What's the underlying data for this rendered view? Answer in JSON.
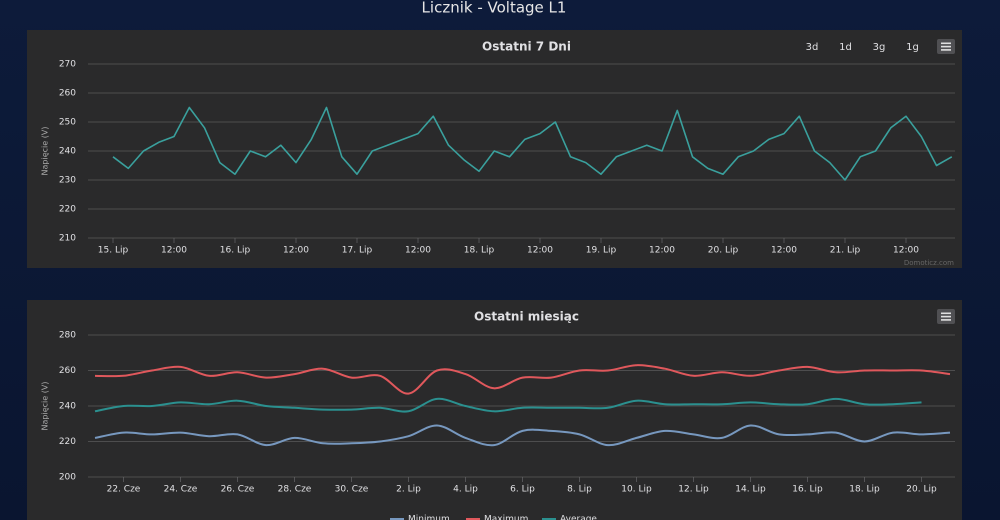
{
  "page_title": "Licznik - Voltage L1",
  "chart_data": [
    {
      "type": "line",
      "title": "Ostatni 7 Dni",
      "y_label": "Napięcie (V)",
      "buttons": [
        "3d",
        "1d",
        "3g",
        "1g"
      ],
      "credits": "Domoticz.com",
      "color": "#3aa09d",
      "grid": true,
      "smooth": false,
      "ylim": [
        210,
        270
      ],
      "yticks": [
        210,
        220,
        230,
        240,
        250,
        260,
        270
      ],
      "categories": [
        "15. Lip",
        null,
        null,
        null,
        "12:00",
        null,
        null,
        null,
        "16. Lip",
        null,
        null,
        null,
        "12:00",
        null,
        null,
        null,
        "17. Lip",
        null,
        null,
        null,
        "12:00",
        null,
        null,
        null,
        "18. Lip",
        null,
        null,
        null,
        "12:00",
        null,
        null,
        null,
        "19. Lip",
        null,
        null,
        null,
        "12:00",
        null,
        null,
        null,
        "20. Lip",
        null,
        null,
        null,
        "12:00",
        null,
        null,
        null,
        "21. Lip",
        null,
        null,
        null,
        "12:00",
        null,
        null,
        null
      ],
      "values": [
        238,
        234,
        240,
        243,
        245,
        255,
        248,
        236,
        232,
        240,
        238,
        242,
        236,
        244,
        255,
        238,
        232,
        240,
        242,
        244,
        246,
        252,
        242,
        237,
        233,
        240,
        238,
        244,
        246,
        250,
        238,
        236,
        232,
        238,
        240,
        242,
        240,
        254,
        238,
        234,
        232,
        238,
        240,
        244,
        246,
        252,
        240,
        236,
        230,
        238,
        240,
        248,
        252,
        245,
        235,
        238
      ]
    },
    {
      "type": "line",
      "title": "Ostatni miesiąc",
      "y_label": "Napięcie (V)",
      "grid": true,
      "smooth": true,
      "legend": "bottom",
      "ylim": [
        200,
        280
      ],
      "yticks": [
        200,
        220,
        240,
        260,
        280
      ],
      "categories": [
        null,
        "22. Cze",
        null,
        "24. Cze",
        null,
        "26. Cze",
        null,
        "28. Cze",
        null,
        "30. Cze",
        null,
        "2. Lip",
        null,
        "4. Lip",
        null,
        "6. Lip",
        null,
        "8. Lip",
        null,
        "10. Lip",
        null,
        "12. Lip",
        null,
        "14. Lip",
        null,
        "16. Lip",
        null,
        "18. Lip",
        null,
        "20. Lip",
        null
      ],
      "series": [
        {
          "name": "Minimum",
          "color": "#7798bf",
          "values": [
            222,
            225,
            224,
            225,
            223,
            224,
            218,
            222,
            219,
            219,
            220,
            223,
            229,
            222,
            218,
            226,
            226,
            224,
            218,
            222,
            226,
            224,
            222,
            229,
            224,
            224,
            225,
            220,
            225,
            224,
            225
          ]
        },
        {
          "name": "Maximum",
          "color": "#e0585c",
          "values": [
            257,
            257,
            260,
            262,
            257,
            259,
            256,
            258,
            261,
            256,
            257,
            247,
            260,
            258,
            250,
            256,
            256,
            260,
            260,
            263,
            261,
            257,
            259,
            257,
            260,
            262,
            259,
            260,
            260,
            260,
            258
          ]
        },
        {
          "name": "Average",
          "color": "#2b908f",
          "values": [
            237,
            240,
            240,
            242,
            241,
            243,
            240,
            239,
            238,
            238,
            239,
            237,
            244,
            240,
            237,
            239,
            239,
            239,
            239,
            243,
            241,
            241,
            241,
            242,
            241,
            241,
            244,
            241,
            241,
            242,
            null
          ]
        }
      ]
    }
  ]
}
